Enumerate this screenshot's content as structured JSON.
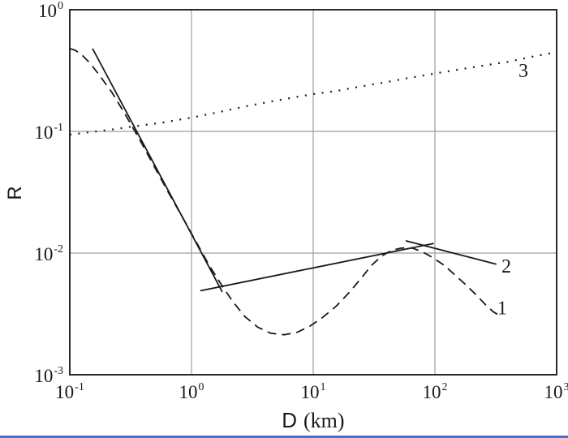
{
  "figure_title": "log-log plot of R versus D (km) with three curves",
  "colors": {
    "curve": "#1a1a1a",
    "frame": "#2b2b2b",
    "grid": "#9e9e9e",
    "background": "#ffffff",
    "bottom_rule": "#4472c4"
  },
  "chart_data": {
    "type": "line",
    "title": "",
    "xlabel": "D (km)",
    "xlabel_d": "D",
    "xlabel_unit": "(km)",
    "ylabel": "R",
    "x_scale": "log",
    "y_scale": "log",
    "xlim": [
      0.1,
      1000
    ],
    "ylim": [
      0.001,
      1
    ],
    "grid": true,
    "x_ticks": [
      {
        "v": 0.1,
        "base": "10",
        "exp": "-1"
      },
      {
        "v": 1,
        "base": "10",
        "exp": "0"
      },
      {
        "v": 10,
        "base": "10",
        "exp": "1"
      },
      {
        "v": 100,
        "base": "10",
        "exp": "2"
      },
      {
        "v": 1000,
        "base": "10",
        "exp": "3"
      }
    ],
    "y_ticks": [
      {
        "v": 1,
        "base": "10",
        "exp": "0"
      },
      {
        "v": 0.1,
        "base": "10",
        "exp": "-1"
      },
      {
        "v": 0.01,
        "base": "10",
        "exp": "-2"
      },
      {
        "v": 0.001,
        "base": "10",
        "exp": "-3"
      }
    ],
    "series": [
      {
        "name": "1",
        "style": "dashed",
        "label": "1",
        "label_pos": [
          357,
          0.0035
        ],
        "points": [
          [
            0.1,
            0.479
          ],
          [
            0.111,
            0.464
          ],
          [
            0.126,
            0.424
          ],
          [
            0.147,
            0.363
          ],
          [
            0.176,
            0.288
          ],
          [
            0.222,
            0.209
          ],
          [
            0.288,
            0.136
          ],
          [
            0.374,
            0.0861
          ],
          [
            0.493,
            0.0518
          ],
          [
            0.65,
            0.0312
          ],
          [
            0.858,
            0.0191
          ],
          [
            1.11,
            0.012
          ],
          [
            1.4,
            0.0079
          ],
          [
            1.74,
            0.0056
          ],
          [
            2.18,
            0.004
          ],
          [
            2.75,
            0.003
          ],
          [
            3.51,
            0.00246
          ],
          [
            4.49,
            0.00219
          ],
          [
            5.75,
            0.00213
          ],
          [
            7.36,
            0.00223
          ],
          [
            9.42,
            0.00251
          ],
          [
            12.0,
            0.00297
          ],
          [
            15.4,
            0.00365
          ],
          [
            19.7,
            0.00473
          ],
          [
            24.8,
            0.00621
          ],
          [
            30.2,
            0.00794
          ],
          [
            36.3,
            0.00941
          ],
          [
            43.7,
            0.0105
          ],
          [
            53.3,
            0.011
          ],
          [
            65.2,
            0.011
          ],
          [
            78.0,
            0.0103
          ],
          [
            94.6,
            0.00926
          ],
          [
            119,
            0.00794
          ],
          [
            144,
            0.00669
          ],
          [
            176,
            0.00559
          ],
          [
            215,
            0.00459
          ],
          [
            258,
            0.0038
          ],
          [
            300,
            0.0033
          ],
          [
            329,
            0.00312
          ]
        ]
      },
      {
        "name": "2",
        "style": "solid",
        "label": "2",
        "label_pos": [
          386,
          0.0077
        ],
        "segments": [
          [
            [
              0.154,
              0.479
            ],
            [
              1.79,
              0.0048
            ]
          ],
          [
            [
              1.18,
              0.0049
            ],
            [
              98.0,
              0.012
            ]
          ],
          [
            [
              57.5,
              0.0126
            ],
            [
              320,
              0.0081
            ]
          ]
        ]
      },
      {
        "name": "3",
        "style": "dotted",
        "label": "3",
        "label_pos": [
          533,
          0.311
        ],
        "points": [
          [
            0.1,
            0.094
          ],
          [
            0.145,
            0.0985
          ],
          [
            0.212,
            0.103
          ],
          [
            0.336,
            0.11
          ],
          [
            0.575,
            0.118
          ],
          [
            1.01,
            0.13
          ],
          [
            1.68,
            0.144
          ],
          [
            2.8,
            0.161
          ],
          [
            4.24,
            0.174
          ],
          [
            6.49,
            0.188
          ],
          [
            10.1,
            0.203
          ],
          [
            15.6,
            0.215
          ],
          [
            23.9,
            0.233
          ],
          [
            37.4,
            0.251
          ],
          [
            62.2,
            0.276
          ],
          [
            106,
            0.302
          ],
          [
            168,
            0.326
          ],
          [
            267,
            0.351
          ],
          [
            403,
            0.374
          ],
          [
            619,
            0.41
          ],
          [
            1000,
            0.449
          ]
        ]
      }
    ]
  }
}
